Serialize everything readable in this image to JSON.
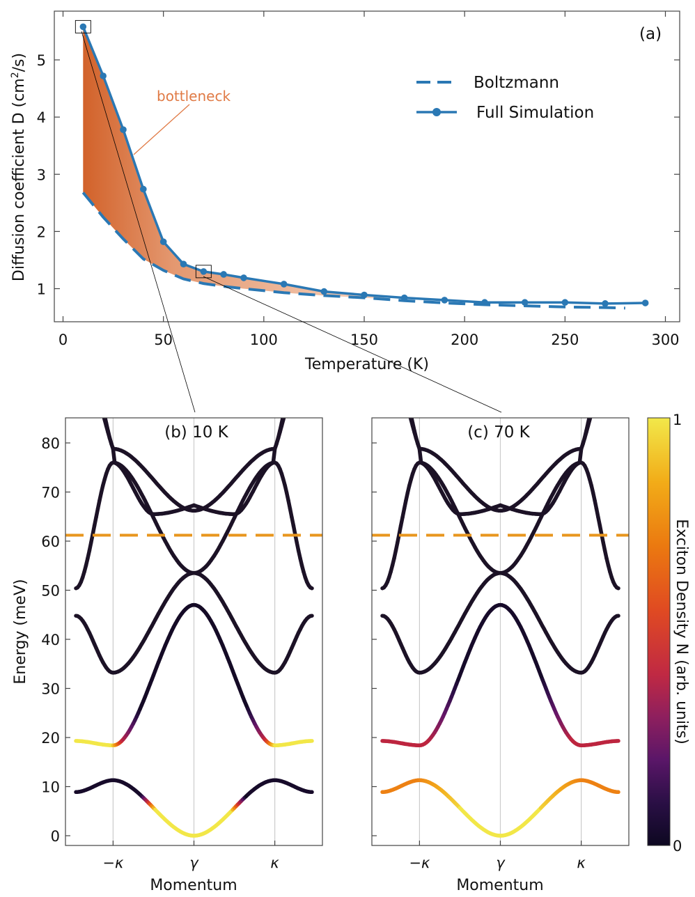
{
  "colors": {
    "series": "#2a78b4",
    "fill_dark": "#d2622a",
    "fill_light": "#f4cfb8",
    "annotation": "#e07a45",
    "cutoff_line": "#e8961e",
    "band_dark": "#1c1226"
  },
  "chart_data": [
    {
      "id": "a",
      "type": "line",
      "panel_label": "(a)",
      "xlabel": "Temperature (K)",
      "ylabel_main": "Diffusion coefficient D (cm",
      "ylabel_sup": "2",
      "ylabel_tail": "/s)",
      "xlim": [
        0,
        300
      ],
      "ylim": [
        0.4,
        5.75
      ],
      "xticks": [
        "0",
        "50",
        "100",
        "150",
        "200",
        "250",
        "300"
      ],
      "yticks": [
        "1",
        "2",
        "3",
        "4",
        "5"
      ],
      "annotation": "bottleneck",
      "legend_position": "upper-right",
      "series": [
        {
          "name": "Boltzmann",
          "style": "dashed",
          "x": [
            10,
            20,
            30,
            40,
            50,
            60,
            70,
            80,
            90,
            110,
            130,
            150,
            170,
            190,
            210,
            230,
            250,
            270,
            280
          ],
          "y": [
            2.68,
            2.25,
            1.87,
            1.52,
            1.32,
            1.17,
            1.09,
            1.04,
            1.0,
            0.93,
            0.88,
            0.84,
            0.79,
            0.75,
            0.72,
            0.7,
            0.68,
            0.67,
            0.66
          ]
        },
        {
          "name": "Full Simulation",
          "style": "solid-markers",
          "x": [
            10,
            20,
            30,
            40,
            50,
            60,
            70,
            80,
            90,
            110,
            130,
            150,
            170,
            190,
            210,
            230,
            250,
            270,
            290
          ],
          "y": [
            5.58,
            4.72,
            3.78,
            2.74,
            1.82,
            1.43,
            1.3,
            1.25,
            1.19,
            1.08,
            0.95,
            0.89,
            0.84,
            0.8,
            0.76,
            0.76,
            0.76,
            0.74,
            0.75
          ]
        }
      ],
      "bottleneck_fill": {
        "x": [
          10,
          20,
          30,
          40,
          50,
          60,
          70,
          80,
          90,
          110,
          130,
          150,
          160
        ],
        "upper": [
          5.58,
          4.72,
          3.78,
          2.74,
          1.82,
          1.43,
          1.3,
          1.25,
          1.19,
          1.08,
          0.95,
          0.89,
          0.87
        ],
        "lower": [
          2.68,
          2.25,
          1.87,
          1.52,
          1.32,
          1.17,
          1.09,
          1.04,
          1.0,
          0.93,
          0.88,
          0.84,
          0.82
        ]
      },
      "zoom_boxes": [
        {
          "x": 10,
          "y": 5.58
        },
        {
          "x": 70,
          "y": 1.3
        }
      ]
    },
    {
      "id": "b",
      "type": "line",
      "title": "(b) 10 K",
      "xlabel": "Momentum",
      "ylabel": "Energy (meV)",
      "xticks": [
        "−κ",
        "γ",
        "κ"
      ],
      "yticks": [
        "0",
        "10",
        "20",
        "30",
        "40",
        "50",
        "60",
        "70",
        "80"
      ],
      "ylim": [
        -2,
        85
      ],
      "cutoff_energy": 61.2,
      "bands": [
        {
          "name": "band1",
          "minus_k_edge": 8.9,
          "kappa": 11.3,
          "gamma": 0.0,
          "color_note": "yellow near gamma, dark elsewhere"
        },
        {
          "name": "band2",
          "minus_k_edge": 19.3,
          "kappa": 18.4,
          "gamma": 47.0,
          "color_note": "yellow near edges, dark toward gamma"
        },
        {
          "name": "band3",
          "minus_k_edge": 44.8,
          "kappa": 33.2,
          "gamma": 53.5
        },
        {
          "name": "band4",
          "minus_k_edge": 50.4,
          "kappa": 76.0,
          "gamma": 53.5
        },
        {
          "name": "band5",
          "kappa": 76.0,
          "gamma": 67.3,
          "between": 65.5
        },
        {
          "name": "band6",
          "kappa": 78.8,
          "top": 85
        }
      ]
    },
    {
      "id": "c",
      "type": "line",
      "title": "(c) 70 K",
      "xlabel": "Momentum",
      "xticks": [
        "−κ",
        "γ",
        "κ"
      ],
      "ylim": [
        -2,
        85
      ],
      "cutoff_energy": 61.2,
      "bands": [
        {
          "name": "band1",
          "minus_k_edge": 8.9,
          "kappa": 11.3,
          "gamma": 0.0,
          "color_note": "yellow near gamma, orange at edges"
        },
        {
          "name": "band2",
          "minus_k_edge": 19.3,
          "kappa": 18.4,
          "gamma": 47.0,
          "color_note": "crimson near edges, dark toward gamma"
        }
      ]
    },
    {
      "id": "colorbar",
      "type": "heatmap",
      "label": "Exciton Density N (arb. units)",
      "min_label": "0",
      "max_label": "1",
      "range": [
        0,
        1
      ]
    }
  ]
}
